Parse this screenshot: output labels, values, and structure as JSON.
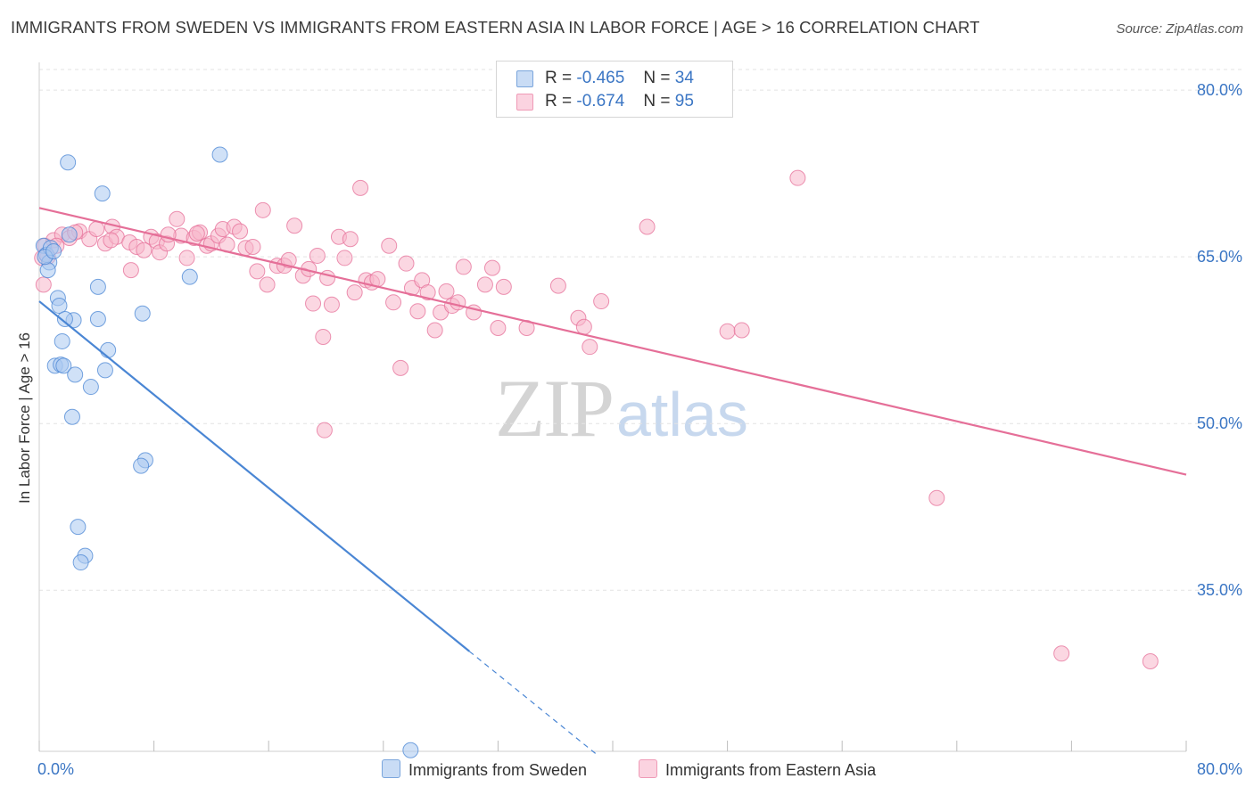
{
  "title": "IMMIGRANTS FROM SWEDEN VS IMMIGRANTS FROM EASTERN ASIA IN LABOR FORCE | AGE > 16 CORRELATION CHART",
  "source": "Source: ZipAtlas.com",
  "watermark": {
    "zip": "ZIP",
    "atlas": "atlas"
  },
  "stats": [
    {
      "r_label": "R =",
      "r": "-0.465",
      "n_label": "N =",
      "n": "34",
      "color": "#a9c8f0"
    },
    {
      "r_label": "R =",
      "r": "-0.674",
      "n_label": "N =",
      "n": "95",
      "color": "#f7b6cb"
    }
  ],
  "legend": [
    {
      "label": "Immigrants from Sweden",
      "color": "#a9c8f0"
    },
    {
      "label": "Immigrants from Eastern Asia",
      "color": "#f7b6cb"
    }
  ],
  "chart_data": {
    "type": "scatter",
    "ylabel": "In Labor Force | Age > 16",
    "xlim": [
      0,
      80
    ],
    "ylim": [
      20.5,
      82.5
    ],
    "x_tick_labels": [
      "0.0%",
      "80.0%"
    ],
    "y_ticks": [
      35,
      50,
      65,
      80
    ],
    "y_tick_labels": [
      "35.0%",
      "50.0%",
      "65.0%",
      "80.0%"
    ],
    "grid": true,
    "series": [
      {
        "name": "Immigrants from Sweden",
        "color": "#4a86d4",
        "fill": "#a9c8f0",
        "points": [
          [
            0.3,
            66.0
          ],
          [
            0.5,
            65.2
          ],
          [
            0.7,
            64.5
          ],
          [
            0.8,
            65.8
          ],
          [
            0.6,
            63.8
          ],
          [
            2.0,
            73.5
          ],
          [
            4.4,
            70.7
          ],
          [
            12.6,
            74.2
          ],
          [
            2.1,
            67.0
          ],
          [
            1.3,
            61.3
          ],
          [
            1.4,
            60.6
          ],
          [
            2.4,
            59.3
          ],
          [
            4.1,
            59.4
          ],
          [
            4.1,
            62.3
          ],
          [
            7.2,
            59.9
          ],
          [
            1.8,
            59.4
          ],
          [
            1.6,
            57.4
          ],
          [
            4.8,
            56.6
          ],
          [
            1.1,
            55.2
          ],
          [
            1.5,
            55.3
          ],
          [
            1.7,
            55.2
          ],
          [
            2.5,
            54.4
          ],
          [
            4.6,
            54.8
          ],
          [
            3.6,
            53.3
          ],
          [
            2.3,
            50.6
          ],
          [
            7.4,
            46.7
          ],
          [
            7.1,
            46.2
          ],
          [
            2.7,
            40.7
          ],
          [
            3.2,
            38.1
          ],
          [
            2.9,
            37.5
          ],
          [
            10.5,
            63.2
          ],
          [
            25.9,
            20.6
          ],
          [
            0.4,
            65.0
          ],
          [
            1.0,
            65.5
          ]
        ],
        "trend": {
          "x": [
            0,
            30.0
          ],
          "y": [
            61.0,
            29.5
          ]
        },
        "trend_dashed": {
          "x": [
            30.0,
            38.9
          ],
          "y": [
            29.5,
            20.2
          ]
        }
      },
      {
        "name": "Immigrants from Eastern Asia",
        "color": "#e56f98",
        "fill": "#f7b6cb",
        "points": [
          [
            0.4,
            66.0
          ],
          [
            0.6,
            65.0
          ],
          [
            1.0,
            66.5
          ],
          [
            1.6,
            67.0
          ],
          [
            2.1,
            66.7
          ],
          [
            2.8,
            67.3
          ],
          [
            3.5,
            66.6
          ],
          [
            4.0,
            67.5
          ],
          [
            4.6,
            66.2
          ],
          [
            5.1,
            67.7
          ],
          [
            5.4,
            66.8
          ],
          [
            6.3,
            66.3
          ],
          [
            6.4,
            63.8
          ],
          [
            6.8,
            65.9
          ],
          [
            7.3,
            65.6
          ],
          [
            7.8,
            66.8
          ],
          [
            8.2,
            66.4
          ],
          [
            8.4,
            65.4
          ],
          [
            8.9,
            66.2
          ],
          [
            9.6,
            68.4
          ],
          [
            9.9,
            66.9
          ],
          [
            10.3,
            64.9
          ],
          [
            10.8,
            66.7
          ],
          [
            11.2,
            67.2
          ],
          [
            11.7,
            66.0
          ],
          [
            12.0,
            66.2
          ],
          [
            12.5,
            66.9
          ],
          [
            12.8,
            67.5
          ],
          [
            13.1,
            66.1
          ],
          [
            13.6,
            67.7
          ],
          [
            14.0,
            67.3
          ],
          [
            14.4,
            65.8
          ],
          [
            14.9,
            65.9
          ],
          [
            15.2,
            63.7
          ],
          [
            15.6,
            69.2
          ],
          [
            15.9,
            62.5
          ],
          [
            16.6,
            64.2
          ],
          [
            17.1,
            64.2
          ],
          [
            17.4,
            64.7
          ],
          [
            17.8,
            67.8
          ],
          [
            18.4,
            63.3
          ],
          [
            18.8,
            63.9
          ],
          [
            19.1,
            60.8
          ],
          [
            19.4,
            65.1
          ],
          [
            19.8,
            57.8
          ],
          [
            20.1,
            63.1
          ],
          [
            20.4,
            60.7
          ],
          [
            20.9,
            66.8
          ],
          [
            21.3,
            64.9
          ],
          [
            21.7,
            66.6
          ],
          [
            22.0,
            61.8
          ],
          [
            22.4,
            71.2
          ],
          [
            22.8,
            62.9
          ],
          [
            23.2,
            62.7
          ],
          [
            23.6,
            63.0
          ],
          [
            24.4,
            66.0
          ],
          [
            24.7,
            60.9
          ],
          [
            25.2,
            55.0
          ],
          [
            25.6,
            64.4
          ],
          [
            26.0,
            62.2
          ],
          [
            26.4,
            60.1
          ],
          [
            26.7,
            62.9
          ],
          [
            27.1,
            61.8
          ],
          [
            27.6,
            58.4
          ],
          [
            28.0,
            60.0
          ],
          [
            28.4,
            61.9
          ],
          [
            28.8,
            60.6
          ],
          [
            29.2,
            60.9
          ],
          [
            29.6,
            64.1
          ],
          [
            30.3,
            60.0
          ],
          [
            31.1,
            62.5
          ],
          [
            31.6,
            64.0
          ],
          [
            32.0,
            58.6
          ],
          [
            32.4,
            62.3
          ],
          [
            34.0,
            58.6
          ],
          [
            36.2,
            62.4
          ],
          [
            37.6,
            59.5
          ],
          [
            38.0,
            58.7
          ],
          [
            38.4,
            56.9
          ],
          [
            39.2,
            61.0
          ],
          [
            42.4,
            67.7
          ],
          [
            48.0,
            58.3
          ],
          [
            49.0,
            58.4
          ],
          [
            52.9,
            72.1
          ],
          [
            19.9,
            49.4
          ],
          [
            62.6,
            43.3
          ],
          [
            71.3,
            29.3
          ],
          [
            77.5,
            28.6
          ],
          [
            0.2,
            64.9
          ],
          [
            0.3,
            62.5
          ],
          [
            1.2,
            66.0
          ],
          [
            2.5,
            67.2
          ],
          [
            5.0,
            66.5
          ],
          [
            9.0,
            67.0
          ],
          [
            11.0,
            67.1
          ]
        ],
        "trend": {
          "x": [
            0,
            80
          ],
          "y": [
            69.4,
            45.4
          ]
        }
      }
    ]
  }
}
